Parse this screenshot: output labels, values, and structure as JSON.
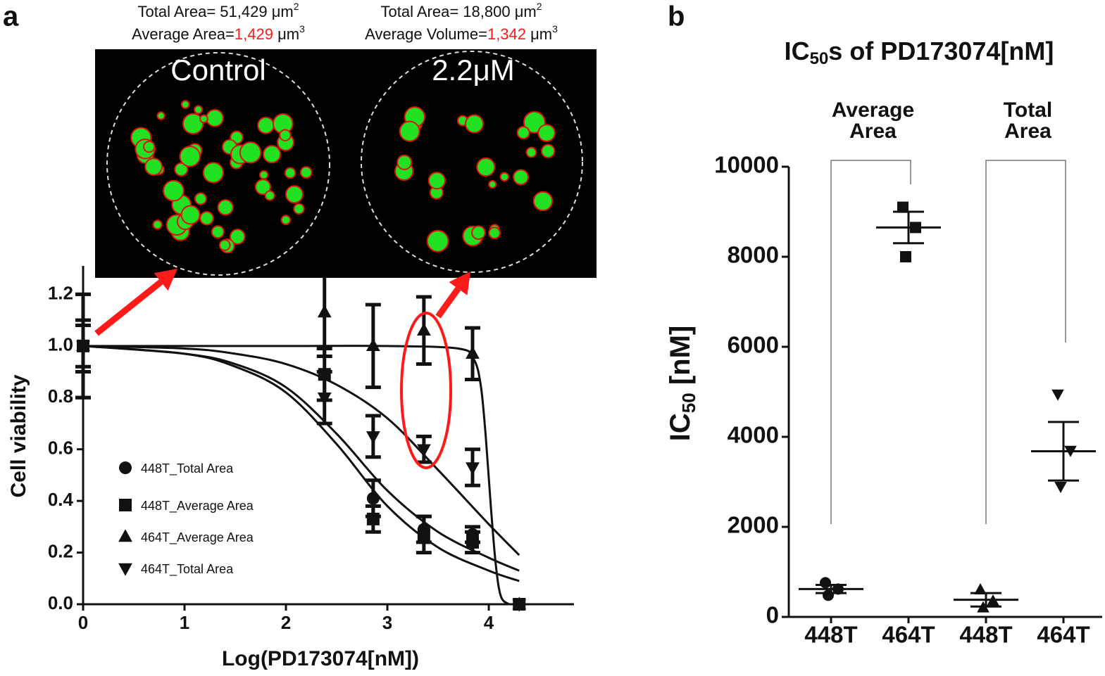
{
  "chart_data": [
    {
      "type": "dose-response",
      "panel_label": "a",
      "xlabel": "Log(PD173074[nM])",
      "ylabel": "Cell viability",
      "xlim": [
        0,
        4.84
      ],
      "ylim": [
        0,
        1.31
      ],
      "xticks": [
        0,
        1,
        2,
        3,
        4
      ],
      "yticks": [
        {
          "value": 0,
          "label": "0.0"
        },
        0.2,
        0.4,
        0.6,
        0.8,
        {
          "value": 1,
          "label": "1.0"
        },
        1.2
      ],
      "legend": "lower-left",
      "series": [
        {
          "name": "448T_Total Area",
          "marker": "circle",
          "color": "#111111",
          "x": [
            0,
            2.86,
            3.36,
            3.84,
            4.3
          ],
          "values": [
            1.0,
            0.41,
            0.29,
            0.27,
            0
          ],
          "errors": [
            0.1,
            0.07,
            0.05,
            0.03,
            null
          ]
        },
        {
          "name": "448T_Average Area",
          "marker": "square",
          "color": "#111111",
          "x": [
            0,
            2.38,
            2.86,
            3.36,
            3.84,
            4.3
          ],
          "values": [
            1.0,
            0.89,
            0.33,
            0.27,
            0.24,
            0
          ],
          "errors": [
            0.08,
            0.1,
            0.05,
            0.07,
            0.04,
            null
          ]
        },
        {
          "name": "464T_Average Area",
          "marker": "triangle-up",
          "color": "#111111",
          "x": [
            0,
            2.38,
            2.86,
            3.36,
            3.84,
            4.3
          ],
          "values": [
            1.0,
            1.13,
            1.0,
            1.06,
            0.97,
            0
          ],
          "errors": [
            0.2,
            0.17,
            0.16,
            0.13,
            0.1,
            null
          ]
        },
        {
          "name": "464T_Total Area",
          "marker": "triangle-down",
          "color": "#111111",
          "x": [
            0,
            2.38,
            2.86,
            3.36,
            3.84,
            4.3
          ],
          "values": [
            1.0,
            0.8,
            0.65,
            0.6,
            0.53,
            0
          ],
          "errors": [
            0.2,
            0.1,
            0.08,
            0.05,
            0.07,
            null
          ]
        }
      ],
      "curves": [
        {
          "x": [
            0,
            1,
            2,
            3,
            3.7,
            3.85,
            3.92,
            3.97,
            4.02,
            4.07,
            4.12,
            4.2
          ],
          "values": [
            1,
            1,
            1,
            1,
            0.99,
            0.95,
            0.85,
            0.65,
            0.38,
            0.15,
            0.03,
            0
          ]
        },
        {
          "x": [
            0,
            1,
            1.5,
            2,
            2.5,
            3,
            3.5,
            4,
            4.3
          ],
          "values": [
            1,
            0.99,
            0.97,
            0.93,
            0.85,
            0.72,
            0.52,
            0.31,
            0.19
          ]
        },
        {
          "x": [
            0,
            1,
            1.5,
            2,
            2.5,
            3,
            3.5,
            4,
            4.3
          ],
          "values": [
            1,
            0.97,
            0.92,
            0.82,
            0.62,
            0.38,
            0.22,
            0.13,
            0.09
          ]
        },
        {
          "x": [
            0,
            1,
            1.5,
            2,
            2.5,
            3,
            3.5,
            4,
            4.3
          ],
          "values": [
            1,
            0.97,
            0.93,
            0.84,
            0.66,
            0.44,
            0.28,
            0.18,
            0.13
          ]
        }
      ],
      "inset": [
        {
          "label": "Control",
          "line1": "Total Area= 51,429 μm",
          "line1_sup": "2",
          "line2_prefix": "Average Area=",
          "line2_value": "1,429",
          "line2_unit": " μm",
          "line2_sup": "3"
        },
        {
          "label": "2.2μM",
          "line1": "Total Area= 18,800 μm",
          "line1_sup": "2",
          "line2_prefix": "Average Volume=",
          "line2_value": "1,342",
          "line2_unit": " μm",
          "line2_sup": "3"
        }
      ]
    },
    {
      "type": "dot-plot",
      "panel_label": "b",
      "title": "IC",
      "title_sub": "50",
      "title_rest": "s of PD173074[nM]",
      "ylabel": "IC",
      "ylabel_sub": "50",
      "ylabel_rest": " [nM]",
      "categories": [
        "448T",
        "464T",
        "448T",
        "464T"
      ],
      "markers": [
        "circle",
        "square",
        "triangle-up",
        "triangle-down"
      ],
      "points": [
        [
          760,
          620,
          480
        ],
        [
          9100,
          8650,
          8000
        ],
        [
          600,
          350,
          200
        ],
        [
          4950,
          3700,
          2900
        ]
      ],
      "means": [
        620,
        8650,
        380,
        3680
      ],
      "errors": [
        90,
        350,
        150,
        650
      ],
      "group_labels": [
        [
          "Average",
          "Area"
        ],
        [
          "Total",
          "Area"
        ]
      ],
      "ylim": [
        0,
        10000
      ],
      "yticks": [
        0,
        2000,
        4000,
        6000,
        8000,
        10000
      ]
    }
  ]
}
